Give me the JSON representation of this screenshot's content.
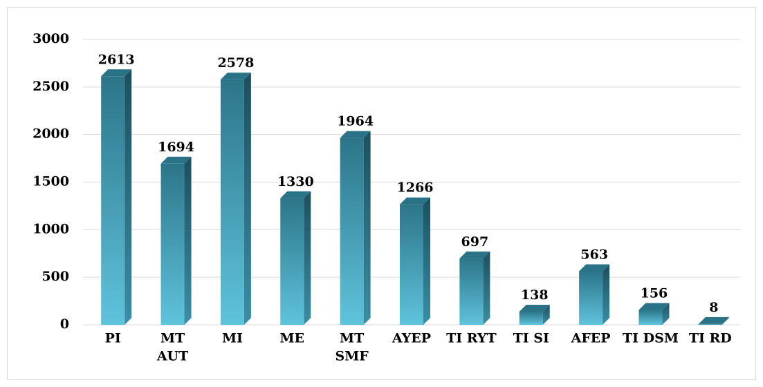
{
  "chart_data": {
    "type": "bar3d",
    "categories": [
      "PI",
      "MT\nAUT",
      "MI",
      "ME",
      "MT\nSMF",
      "AYEP",
      "TI RYT",
      "TI SI",
      "AFEP",
      "TI DSM",
      "TI RD"
    ],
    "values": [
      2613,
      1694,
      2578,
      1330,
      1964,
      1266,
      697,
      138,
      563,
      156,
      8
    ],
    "color": "#3d9bb3",
    "ylim": [
      0,
      3000
    ],
    "yticks": [
      0,
      500,
      1000,
      1500,
      2000,
      2500,
      3000
    ],
    "grid": true
  }
}
